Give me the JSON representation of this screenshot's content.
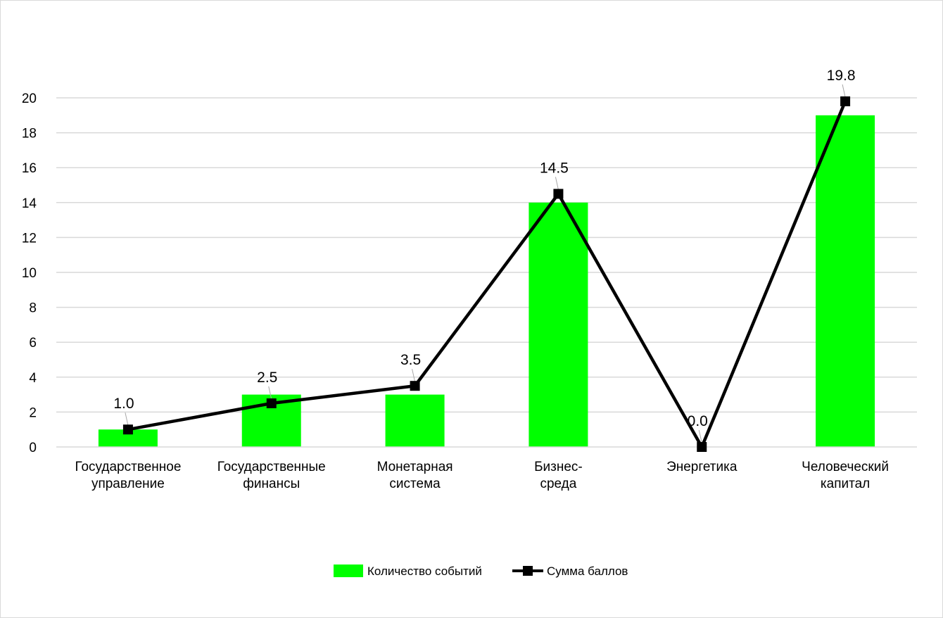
{
  "chart_data": {
    "type": "bar",
    "categories": [
      [
        "Государственное",
        "управление"
      ],
      [
        "Государственные",
        "финансы"
      ],
      [
        "Монетарная",
        "система"
      ],
      [
        "Бизнес-",
        "среда"
      ],
      [
        "Энергетика"
      ],
      [
        "Человеческий",
        "капитал"
      ]
    ],
    "series": [
      {
        "name": "Количество событий",
        "type": "bar",
        "color": "#00ff00",
        "values": [
          1,
          3,
          3,
          14,
          0,
          19
        ]
      },
      {
        "name": "Сумма баллов",
        "type": "line",
        "color": "#000000",
        "marker": "square",
        "values": [
          1.0,
          2.5,
          3.5,
          14.5,
          0.0,
          19.8
        ],
        "labels": [
          "1.0",
          "2.5",
          "3.5",
          "14.5",
          "0.0",
          "19.8"
        ]
      }
    ],
    "yticks": [
      "0",
      "2",
      "4",
      "6",
      "8",
      "10",
      "12",
      "14",
      "16",
      "18",
      "20"
    ],
    "ylim": [
      0,
      20
    ],
    "grid": true,
    "legend": "bottom"
  }
}
